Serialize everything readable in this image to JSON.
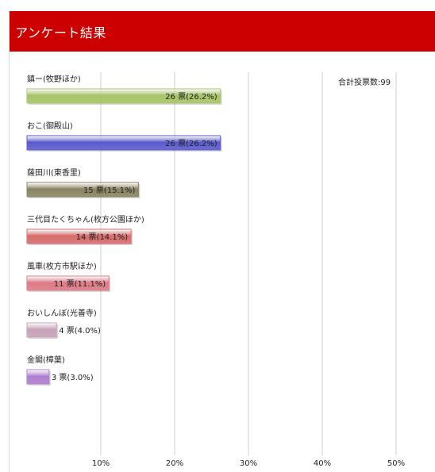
{
  "header": {
    "title": "アンケート結果"
  },
  "total_votes": "合計投票数:99",
  "unit": "票",
  "chart_data": {
    "type": "bar",
    "orientation": "horizontal",
    "categories": [
      "鎮ー(牧野ほか)",
      "おこ(御殿山)",
      "薩田川(東香里)",
      "三代目たくちゃん(枚方公園ほか)",
      "風車(枚方市駅ほか)",
      "おいしんぼ(光善寺)",
      "金閣(樟葉)"
    ],
    "values": [
      26,
      26,
      15,
      14,
      11,
      4,
      3
    ],
    "percents": [
      26.2,
      26.2,
      15.1,
      14.1,
      11.1,
      4.0,
      3.0
    ],
    "value_labels": [
      "26 票(26.2%)",
      "26 票(26.2%)",
      "15 票(15.1%)",
      "14 票(14.1%)",
      "11 票(11.1%)",
      "4 票(4.0%)",
      "3 票(3.0%)"
    ],
    "colors": [
      "#a7c566",
      "#5a5ad0",
      "#8a8460",
      "#d96b6b",
      "#df7a86",
      "#c9a2b9",
      "#b07fd0"
    ],
    "xticks": [
      "10%",
      "20%",
      "30%",
      "40%",
      "50%"
    ],
    "xlim": [
      0,
      55
    ],
    "grid": true
  }
}
